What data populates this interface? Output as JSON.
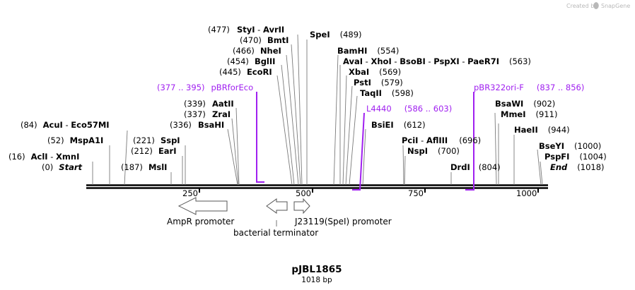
{
  "header": {
    "watermark": "Created by",
    "watermark_brand": "SnapGene"
  },
  "map": {
    "title": "pJBL1865",
    "length_label": "1018 bp",
    "length_bp": 1018,
    "ticks": [
      {
        "bp": 250,
        "label": "250"
      },
      {
        "bp": 500,
        "label": "500"
      },
      {
        "bp": 750,
        "label": "750"
      },
      {
        "bp": 1000,
        "label": "1000"
      }
    ],
    "colors": {
      "backbone": "#000000",
      "primer": "#a020f0",
      "connector": "#888888"
    },
    "sites": [
      {
        "left": "(477)",
        "name": "StyI",
        "sep": " - ",
        "name2": "AvrII"
      },
      {
        "left": "(470)",
        "name": "BmtI"
      },
      {
        "left": "(466)",
        "name": "NheI"
      },
      {
        "left": "(454)",
        "name": "BglII"
      },
      {
        "left": "(445)",
        "name": "EcoRI"
      },
      {
        "name": "SpeI",
        "right": "(489)"
      },
      {
        "name": "BamHI",
        "right": "(554)"
      },
      {
        "name": "AvaI",
        "sep": " - ",
        "name2": "XhoI",
        "sep2": " - ",
        "name3": "BsoBI",
        "sep3": " - ",
        "name4": "PspXI",
        "sep4": " - ",
        "name5": "PaeR7I",
        "right": "(563)"
      },
      {
        "name": "XbaI",
        "right": "(569)"
      },
      {
        "name": "PstI",
        "right": "(579)"
      },
      {
        "name": "TaqII",
        "right": "(598)"
      },
      {
        "left": "(339)",
        "name": "AatII"
      },
      {
        "left": "(337)",
        "name": "ZraI"
      },
      {
        "left": "(336)",
        "name": "BsaHI"
      },
      {
        "left": "(84)",
        "name": "AcuI",
        "sep": " - ",
        "name2": "Eco57MI"
      },
      {
        "left": "(52)",
        "name": "MspA1I"
      },
      {
        "left": "(221)",
        "name": "SspI"
      },
      {
        "left": "(212)",
        "name": "EarI"
      },
      {
        "left": "(16)",
        "name": "AclI",
        "sep": " - ",
        "name2": "XmnI"
      },
      {
        "left": "(187)",
        "name": "MslI"
      },
      {
        "left": "(0)",
        "name": "Start"
      },
      {
        "name": "BsiEI",
        "right": "(612)"
      },
      {
        "name": "PciI",
        "sep": " - ",
        "name2": "AflIII",
        "right": "(696)"
      },
      {
        "name": "NspI",
        "right": "(700)"
      },
      {
        "name": "DrdI",
        "right": "(804)"
      },
      {
        "name": "BsaWI",
        "right": "(902)"
      },
      {
        "name": "MmeI",
        "right": "(911)"
      },
      {
        "name": "HaeII",
        "right": "(944)"
      },
      {
        "name": "BseYI",
        "right": "(1000)"
      },
      {
        "name": "PspFI",
        "right": "(1004)"
      },
      {
        "name": "End",
        "right": "(1018)"
      }
    ],
    "primers": [
      {
        "range": "(377 .. 395)",
        "name": "pBRforEco"
      },
      {
        "name": "L4440",
        "range": "(586 .. 603)"
      },
      {
        "name": "pBR322ori-F",
        "range": "(837 .. 856)"
      }
    ],
    "features": [
      {
        "name": "AmpR promoter"
      },
      {
        "name": "bacterial terminator"
      },
      {
        "name": "J23119(SpeI) promoter"
      }
    ]
  }
}
